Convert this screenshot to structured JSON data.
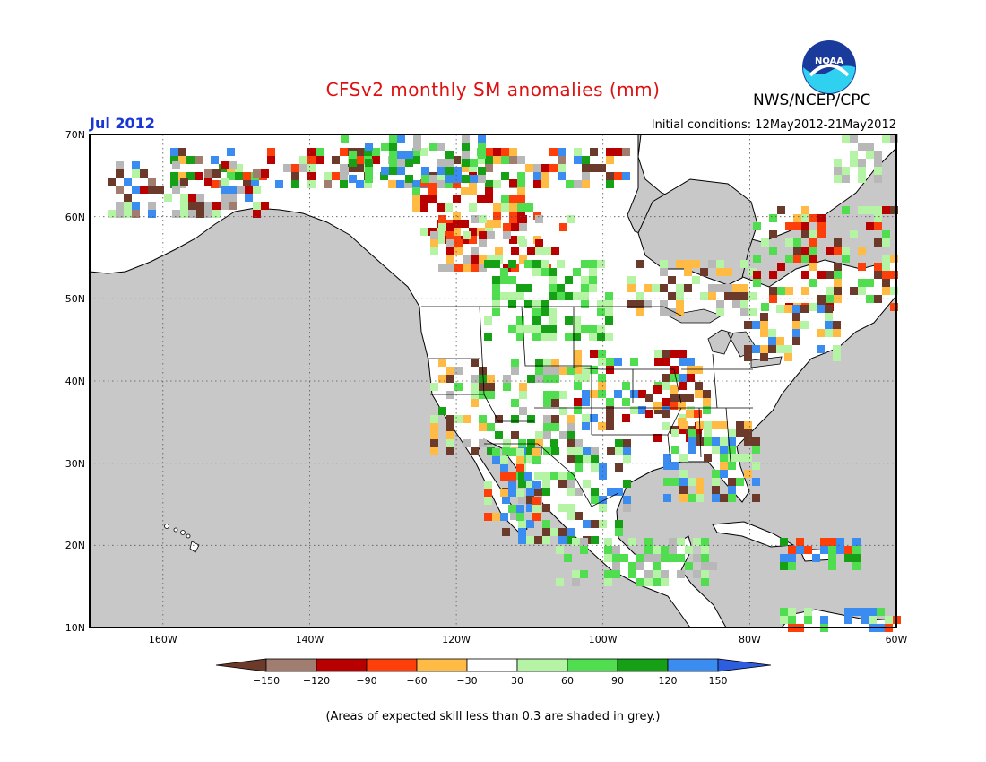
{
  "header": {
    "title": "CFSv2 monthly SM anomalies (mm)",
    "organization": "NWS/NCEP/CPC",
    "logo_text": "NOAA",
    "target_month": "Jul 2012",
    "initial_conditions": "Initial conditions: 12May2012-21May2012"
  },
  "map": {
    "lat_labels": [
      "70N",
      "60N",
      "50N",
      "40N",
      "30N",
      "20N",
      "10N"
    ],
    "lon_labels": [
      "160W",
      "140W",
      "120W",
      "100W",
      "80W",
      "60W"
    ],
    "colors": {
      "ocean": "#c8c8c8",
      "land": "#ffffff",
      "border": "#000000",
      "grid": "#555555"
    }
  },
  "legend": {
    "bins": [
      {
        "color": "#6b3a2a"
      },
      {
        "color": "#a07d6e"
      },
      {
        "color": "#b80000"
      },
      {
        "color": "#ff3f0a"
      },
      {
        "color": "#ffbb44"
      },
      {
        "color": "#ffffff"
      },
      {
        "color": "#b4f4a4"
      },
      {
        "color": "#50de50"
      },
      {
        "color": "#15a015"
      },
      {
        "color": "#3b8cf0"
      },
      {
        "color": "#2d5ee0"
      }
    ],
    "ticks": [
      "−150",
      "−120",
      "−90",
      "−60",
      "−30",
      "30",
      "60",
      "90",
      "120",
      "150"
    ]
  },
  "footnote": "(Areas of expected skill less than 0.3 are shaded in grey.)"
}
